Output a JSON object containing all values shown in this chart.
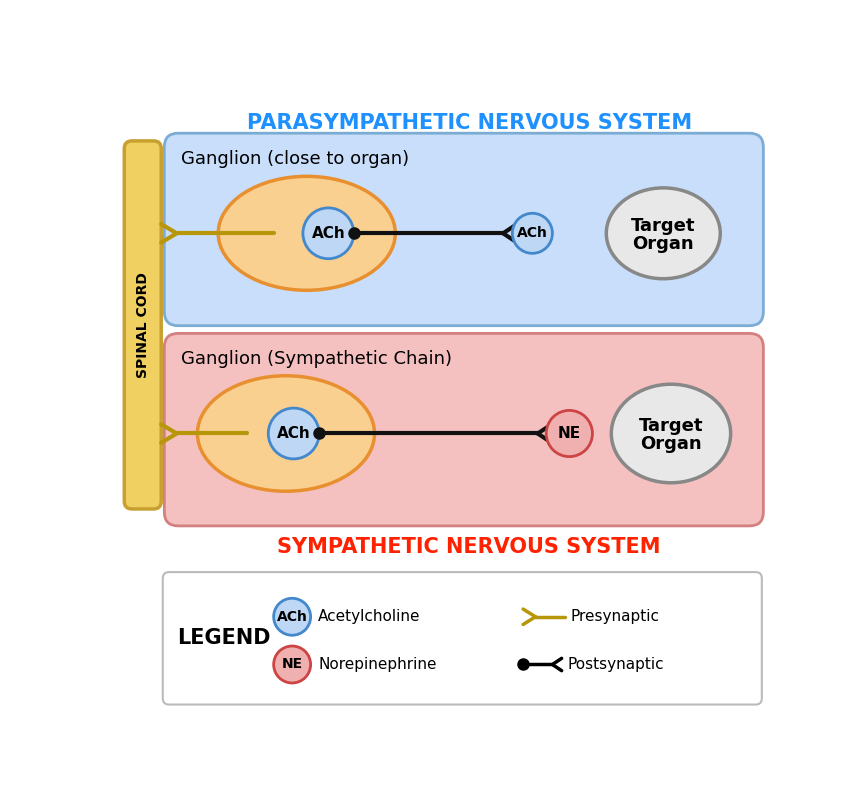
{
  "title_para": "PARASYMPATHETIC NERVOUS SYSTEM",
  "title_sym": "SYMPATHETIC NERVOUS SYSTEM",
  "title_para_color": "#1E90FF",
  "title_sym_color": "#FF2200",
  "para_box_color": "#C8DEFA",
  "para_box_edge": "#7BADD4",
  "sym_box_color": "#F5C0C0",
  "sym_box_edge": "#D48080",
  "spinal_cord_bg": "#F0D060",
  "spinal_cord_border": "#C8A030",
  "spinal_cord_text": "SPINAL CORD",
  "ganglion_ellipse_fill": "#FAD090",
  "ganglion_ellipse_edge": "#E89030",
  "ach_fill": "#BDD7F5",
  "ach_edge": "#4488CC",
  "ne_fill": "#F0B0B0",
  "ne_edge": "#CC4444",
  "target_fill": "#E8E8E8",
  "target_edge": "#888888",
  "pre_color": "#B8960A",
  "post_color": "#111111",
  "legend_edge": "#BBBBBB",
  "bg_color": "#FFFFFF"
}
